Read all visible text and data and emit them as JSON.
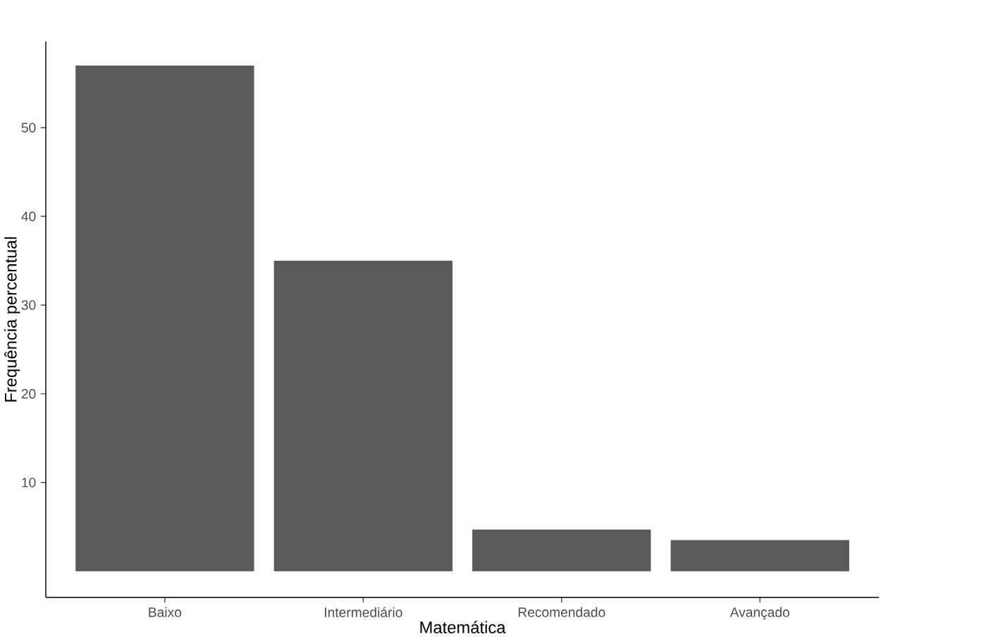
{
  "chart_data": {
    "type": "bar",
    "xlabel": "Matemática",
    "ylabel": "Frequência percentual",
    "categories": [
      "Baixo",
      "Intermediário",
      "Recomendado",
      "Avançado"
    ],
    "values": [
      57.0,
      35.0,
      4.7,
      3.5
    ],
    "color": "#595959",
    "ylim": [
      -2.95,
      59.7
    ],
    "yticks": [
      10,
      20,
      30,
      40,
      50
    ]
  }
}
